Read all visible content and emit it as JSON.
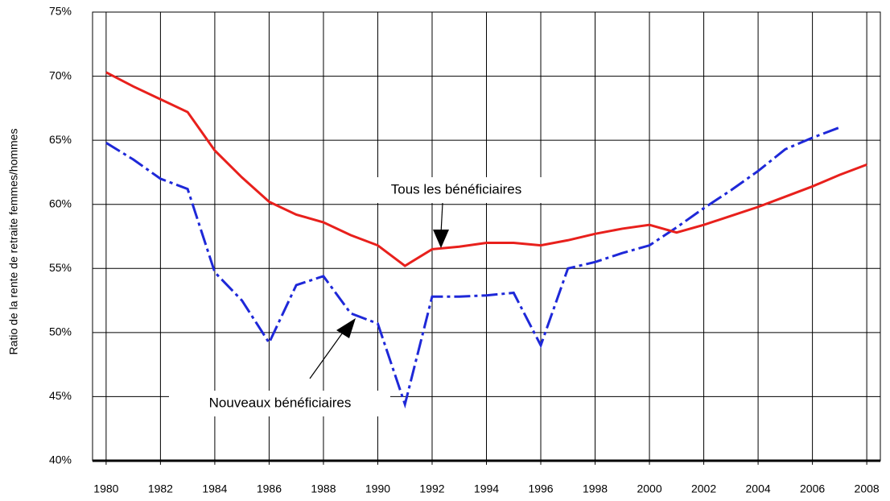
{
  "chart_data": {
    "type": "line",
    "ylabel": "Ratio de la rente de retraite femmes/hommes",
    "x": [
      1980,
      1981,
      1982,
      1983,
      1984,
      1985,
      1986,
      1987,
      1988,
      1989,
      1990,
      1991,
      1992,
      1993,
      1994,
      1995,
      1996,
      1997,
      1998,
      1999,
      2000,
      2001,
      2002,
      2003,
      2004,
      2005,
      2006,
      2007,
      2008
    ],
    "series": [
      {
        "name": "Tous les bénéficiaires",
        "color": "#e8201c",
        "style": "solid",
        "values": [
          70.3,
          69.2,
          68.2,
          67.2,
          64.2,
          62.1,
          60.2,
          59.2,
          58.6,
          57.6,
          56.8,
          55.2,
          56.5,
          56.7,
          57.0,
          57.0,
          56.8,
          57.2,
          57.7,
          58.1,
          58.4,
          57.8,
          58.4,
          59.1,
          59.8,
          60.6,
          61.4,
          62.3,
          63.1
        ]
      },
      {
        "name": "Nouveaux bénéficiaires",
        "color": "#1e28d8",
        "style": "dashdot",
        "values": [
          64.8,
          63.5,
          62.0,
          61.2,
          54.7,
          52.5,
          49.2,
          53.7,
          54.4,
          51.5,
          50.7,
          44.4,
          52.8,
          52.8,
          52.9,
          53.1,
          49.0,
          55.0,
          55.5,
          56.2,
          56.8,
          58.2,
          59.7,
          61.1,
          62.6,
          64.3,
          65.2,
          66.0,
          null
        ]
      }
    ],
    "xlim": [
      1979.5,
      2008.5
    ],
    "xticks": [
      1980,
      1982,
      1984,
      1986,
      1988,
      1990,
      1992,
      1994,
      1996,
      1998,
      2000,
      2002,
      2004,
      2006,
      2008
    ],
    "ylim": [
      40,
      75
    ],
    "yticks": [
      {
        "value": 40,
        "label": "40%"
      },
      {
        "value": 45,
        "label": "45%"
      },
      {
        "value": 50,
        "label": "50%"
      },
      {
        "value": 55,
        "label": "55%"
      },
      {
        "value": 60,
        "label": "60%"
      },
      {
        "value": 65,
        "label": "65%"
      },
      {
        "value": 70,
        "label": "70%"
      },
      {
        "value": 75,
        "label": "75%"
      }
    ],
    "grid": true
  }
}
